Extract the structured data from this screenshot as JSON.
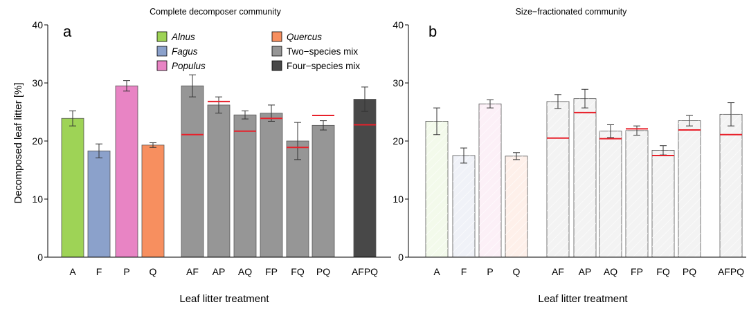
{
  "chart_data": [
    {
      "type": "bar",
      "title": "Complete decomposer community",
      "panel_label": "a",
      "ylabel": "Decomposed leaf litter [%]",
      "xlabel": "Leaf litter treatment",
      "ylim": [
        0,
        40
      ],
      "yticks": [
        "0",
        "10",
        "20",
        "30",
        "40"
      ],
      "style": "filled",
      "categories": [
        "A",
        "F",
        "P",
        "Q",
        "AF",
        "AP",
        "AQ",
        "FP",
        "FQ",
        "PQ",
        "AFPQ"
      ],
      "values": [
        23.9,
        18.3,
        29.5,
        19.3,
        29.5,
        26.2,
        24.5,
        24.8,
        20.0,
        22.7,
        27.2
      ],
      "error": [
        1.3,
        1.2,
        0.9,
        0.4,
        1.9,
        1.4,
        0.7,
        1.4,
        3.2,
        0.8,
        2.1
      ],
      "expected": [
        null,
        null,
        null,
        null,
        21.1,
        26.8,
        21.7,
        23.9,
        18.9,
        24.4,
        22.8
      ],
      "expected_color": "#e8202a",
      "bar_colors": [
        "#9ed356",
        "#8ba1cb",
        "#e884c4",
        "#f78f5f",
        "#969696",
        "#969696",
        "#969696",
        "#969696",
        "#969696",
        "#969696",
        "#484848"
      ],
      "legend": {
        "placement": "top",
        "entries": [
          {
            "label": "Alnus",
            "color": "#9ed356",
            "italic": true
          },
          {
            "label": "Fagus",
            "color": "#8ba1cb",
            "italic": true
          },
          {
            "label": "Populus",
            "color": "#e884c4",
            "italic": true
          },
          {
            "label": "Quercus",
            "color": "#f78f5f",
            "italic": true
          },
          {
            "label": "Two−species mix",
            "color": "#969696",
            "italic": false
          },
          {
            "label": "Four−species mix",
            "color": "#484848",
            "italic": false
          }
        ]
      }
    },
    {
      "type": "bar",
      "title": "Size−fractionated community",
      "panel_label": "b",
      "ylabel": "",
      "xlabel": "Leaf litter treatment",
      "ylim": [
        0,
        40
      ],
      "yticks": [
        "0",
        "10",
        "20",
        "30",
        "40"
      ],
      "style": "hatched",
      "categories": [
        "A",
        "F",
        "P",
        "Q",
        "AF",
        "AP",
        "AQ",
        "FP",
        "FQ",
        "PQ",
        "AFPQ"
      ],
      "values": [
        23.4,
        17.5,
        26.4,
        17.4,
        26.8,
        27.3,
        21.7,
        21.8,
        18.4,
        23.5,
        24.6
      ],
      "error": [
        2.3,
        1.3,
        0.7,
        0.6,
        1.2,
        1.6,
        1.1,
        0.8,
        0.8,
        0.9,
        2.0
      ],
      "expected": [
        null,
        null,
        null,
        null,
        20.5,
        24.9,
        20.4,
        22.1,
        17.5,
        21.9,
        21.1
      ],
      "expected_color": "#e8202a",
      "bar_colors": [
        "#f3faeb",
        "#f0f2f8",
        "#fcf0f7",
        "#fef0ea",
        "#f3f3f3",
        "#f3f3f3",
        "#f3f3f3",
        "#f3f3f3",
        "#f3f3f3",
        "#f3f3f3",
        "#f3f3f3"
      ]
    }
  ]
}
